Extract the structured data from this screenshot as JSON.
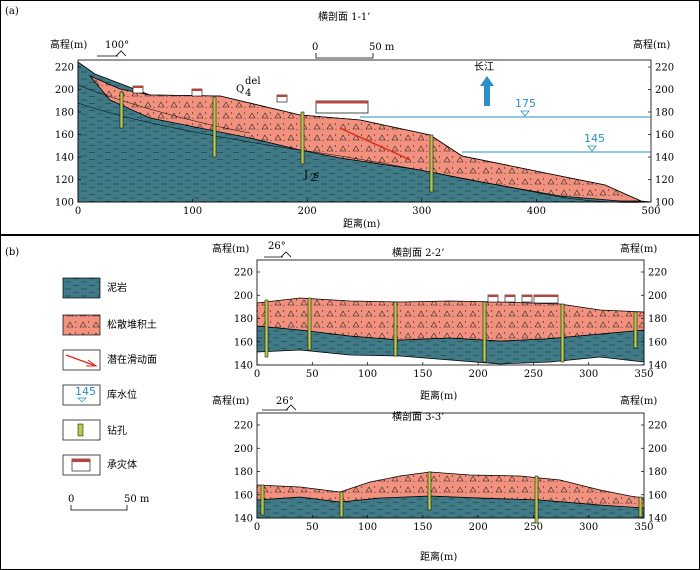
{
  "panel_a": {
    "label": "(a)",
    "title": "横剖面 1-1’",
    "ylabel_left": "高程(m)",
    "ylabel_right": "高程(m)",
    "xlabel": "距离(m)",
    "x_ticks": [
      "0",
      "100",
      "200",
      "300",
      "400",
      "500"
    ],
    "y_ticks": [
      "100",
      "120",
      "140",
      "160",
      "180",
      "200",
      "220"
    ],
    "direction": "100°",
    "scale_text": "50 m",
    "scale_zero": "0",
    "north_label": "长江",
    "water_levels": [
      "175",
      "145"
    ],
    "unit_q": "Q",
    "unit_q_sub": "4",
    "unit_q_sup": "del",
    "unit_j": "J",
    "unit_j_sub": "2",
    "unit_j_suffix": "s"
  },
  "panel_b": {
    "label": "(b)",
    "section2": {
      "title": "横剖面 2-2’",
      "ylabel_left": "高程(m)",
      "ylabel_right": "高程(m)",
      "xlabel": "距离(m)",
      "direction": "26°",
      "x_ticks": [
        "0",
        "50",
        "100",
        "150",
        "200",
        "250",
        "300",
        "350"
      ],
      "y_ticks": [
        "140",
        "160",
        "180",
        "200",
        "220"
      ]
    },
    "section3": {
      "title": "横剖面 3-3’",
      "ylabel_left": "高程(m)",
      "ylabel_right": "高程(m)",
      "xlabel": "距离(m)",
      "direction": "26°",
      "x_ticks": [
        "0",
        "50",
        "100",
        "150",
        "200",
        "250",
        "300",
        "350"
      ],
      "y_ticks": [
        "140",
        "160",
        "180",
        "200",
        "220"
      ]
    }
  },
  "legend": {
    "mudstone": "泥岩",
    "loose_deposit": "松散堆积土",
    "slip_surface": "潜在滑动面",
    "water_level_value": "145",
    "water_level": "库水位",
    "borehole": "钻孔",
    "hazard_body": "承灾体",
    "scale_zero": "0",
    "scale_text": "50 m"
  },
  "colors": {
    "mudstone": "#3f7a86",
    "deposit": "#f2917e",
    "borehole": "#b9c94a",
    "water": "#2a8fc6",
    "slip": "#e0261a",
    "roof": "#c0403a"
  }
}
